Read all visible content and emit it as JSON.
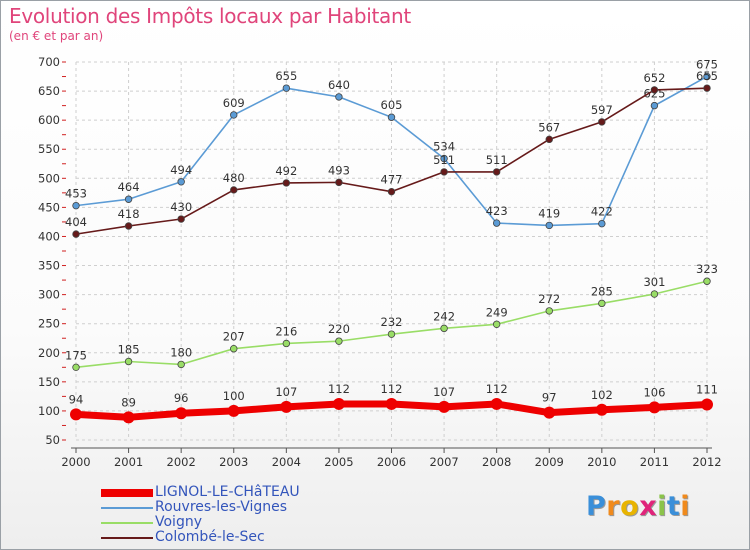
{
  "title": "Evolution des Impôts locaux par Habitant",
  "subtitle": "(en € et par an)",
  "logo": {
    "letters": [
      "P",
      "r",
      "o",
      "x",
      "i",
      "t",
      "i"
    ],
    "colors": [
      "#3a8fd9",
      "#f08a1c",
      "#e8b400",
      "#e0237a",
      "#8bc34a",
      "#3a8fd9",
      "#f08a1c"
    ]
  },
  "chart_data": {
    "type": "line",
    "x": [
      "2000",
      "2001",
      "2002",
      "2003",
      "2004",
      "2005",
      "2006",
      "2007",
      "2008",
      "2009",
      "2010",
      "2011",
      "2012"
    ],
    "ylim": [
      50,
      700
    ],
    "yticks": [
      "50",
      "100",
      "150",
      "200",
      "250",
      "300",
      "350",
      "400",
      "450",
      "500",
      "550",
      "600",
      "650",
      "700"
    ],
    "grid": true,
    "legend_position": "bottom-left",
    "series": [
      {
        "name": "LIGNOL-LE-CHâTEAU",
        "color": "#ee0000",
        "values": [
          94,
          89,
          96,
          100,
          107,
          112,
          112,
          107,
          112,
          97,
          102,
          106,
          111
        ]
      },
      {
        "name": "Rouvres-les-Vignes",
        "color": "#5b9bd5",
        "values": [
          453,
          464,
          494,
          609,
          655,
          640,
          605,
          534,
          423,
          419,
          422,
          625,
          675
        ]
      },
      {
        "name": "Voigny",
        "color": "#99dd66",
        "values": [
          175,
          185,
          180,
          207,
          216,
          220,
          232,
          242,
          249,
          272,
          285,
          301,
          323
        ]
      },
      {
        "name": "Colombé-le-Sec",
        "color": "#661a1a",
        "values": [
          404,
          418,
          430,
          480,
          492,
          493,
          477,
          511,
          511,
          567,
          597,
          652,
          655
        ]
      }
    ]
  }
}
